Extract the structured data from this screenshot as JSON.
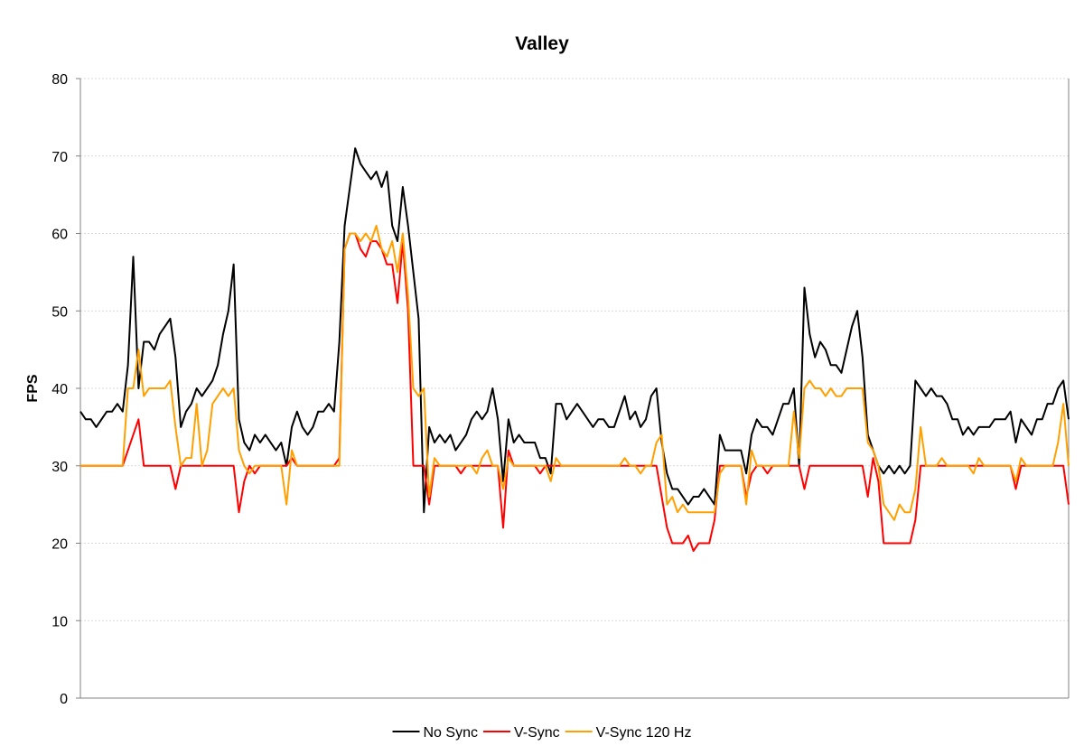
{
  "chart_data": {
    "type": "line",
    "title": "Valley",
    "xlabel": "",
    "ylabel": "FPS",
    "ylim": [
      0,
      80
    ],
    "yticks": [
      "0",
      "10",
      "20",
      "30",
      "40",
      "50",
      "60",
      "70",
      "80"
    ],
    "grid": true,
    "legend_position": "bottom",
    "series": [
      {
        "name": "No Sync",
        "color": "#000000",
        "values": [
          37,
          36,
          36,
          35,
          36,
          37,
          37,
          38,
          37,
          43,
          57,
          40,
          46,
          46,
          45,
          47,
          48,
          49,
          44,
          35,
          37,
          38,
          40,
          39,
          40,
          41,
          43,
          47,
          50,
          56,
          36,
          33,
          32,
          34,
          33,
          34,
          33,
          32,
          33,
          30,
          35,
          37,
          35,
          34,
          35,
          37,
          37,
          38,
          37,
          46,
          61,
          66,
          71,
          69,
          68,
          67,
          68,
          66,
          68,
          61,
          59,
          66,
          61,
          55,
          49,
          24,
          35,
          33,
          34,
          33,
          34,
          32,
          33,
          34,
          36,
          37,
          36,
          37,
          40,
          36,
          28,
          36,
          33,
          34,
          33,
          33,
          33,
          31,
          31,
          29,
          38,
          38,
          36,
          37,
          38,
          37,
          36,
          35,
          36,
          36,
          35,
          35,
          37,
          39,
          36,
          37,
          35,
          36,
          39,
          40,
          33,
          29,
          27,
          27,
          26,
          25,
          26,
          26,
          27,
          26,
          25,
          34,
          32,
          32,
          32,
          32,
          29,
          34,
          36,
          35,
          35,
          34,
          36,
          38,
          38,
          40,
          30,
          53,
          47,
          44,
          46,
          45,
          43,
          43,
          42,
          45,
          48,
          50,
          44,
          34,
          32,
          30,
          29,
          30,
          29,
          30,
          29,
          30,
          41,
          40,
          39,
          40,
          39,
          39,
          38,
          36,
          36,
          34,
          35,
          34,
          35,
          35,
          35,
          36,
          36,
          36,
          37,
          33,
          36,
          35,
          34,
          36,
          36,
          38,
          38,
          40,
          41,
          36
        ]
      },
      {
        "name": "V-Sync",
        "color": "#ff0000",
        "values": [
          30,
          30,
          30,
          30,
          30,
          30,
          30,
          30,
          30,
          32,
          34,
          36,
          30,
          30,
          30,
          30,
          30,
          30,
          27,
          30,
          30,
          30,
          30,
          30,
          30,
          30,
          30,
          30,
          30,
          30,
          24,
          28,
          30,
          29,
          30,
          30,
          30,
          30,
          30,
          30,
          31,
          30,
          30,
          30,
          30,
          30,
          30,
          30,
          30,
          31,
          58,
          60,
          60,
          58,
          57,
          59,
          59,
          58,
          56,
          56,
          51,
          59,
          50,
          30,
          30,
          30,
          25,
          30,
          30,
          30,
          30,
          30,
          29,
          30,
          30,
          30,
          30,
          30,
          30,
          30,
          22,
          32,
          30,
          30,
          30,
          30,
          30,
          29,
          30,
          30,
          30,
          30,
          30,
          30,
          30,
          30,
          30,
          30,
          30,
          30,
          30,
          30,
          30,
          30,
          30,
          30,
          30,
          30,
          30,
          30,
          26,
          22,
          20,
          20,
          20,
          21,
          19,
          20,
          20,
          20,
          23,
          30,
          30,
          30,
          30,
          30,
          26,
          29,
          30,
          30,
          29,
          30,
          30,
          30,
          30,
          30,
          30,
          27,
          30,
          30,
          30,
          30,
          30,
          30,
          30,
          30,
          30,
          30,
          30,
          26,
          31,
          28,
          20,
          20,
          20,
          20,
          20,
          20,
          23,
          30,
          30,
          30,
          30,
          30,
          30,
          30,
          30,
          30,
          30,
          30,
          30,
          30,
          30,
          30,
          30,
          30,
          30,
          27,
          30,
          30,
          30,
          30,
          30,
          30,
          30,
          30,
          30,
          25
        ]
      },
      {
        "name": "V-Sync 120 Hz",
        "color": "#ffa000",
        "values": [
          30,
          30,
          30,
          30,
          30,
          30,
          30,
          30,
          30,
          40,
          40,
          45,
          39,
          40,
          40,
          40,
          40,
          41,
          35,
          30,
          31,
          31,
          38,
          30,
          32,
          38,
          39,
          40,
          39,
          40,
          32,
          30,
          29,
          30,
          30,
          30,
          30,
          30,
          30,
          25,
          32,
          30,
          30,
          30,
          30,
          30,
          30,
          30,
          30,
          30,
          58,
          60,
          60,
          59,
          60,
          59,
          61,
          58,
          57,
          59,
          55,
          60,
          52,
          40,
          39,
          40,
          26,
          31,
          30,
          30,
          30,
          30,
          30,
          30,
          30,
          29,
          31,
          32,
          30,
          30,
          27,
          31,
          30,
          30,
          30,
          30,
          30,
          30,
          30,
          28,
          31,
          30,
          30,
          30,
          30,
          30,
          30,
          30,
          30,
          30,
          30,
          30,
          30,
          31,
          30,
          30,
          29,
          30,
          30,
          33,
          34,
          25,
          26,
          24,
          25,
          24,
          24,
          24,
          24,
          24,
          24,
          29,
          30,
          30,
          30,
          30,
          25,
          32,
          30,
          30,
          30,
          30,
          30,
          30,
          30,
          37,
          31,
          40,
          41,
          40,
          40,
          39,
          40,
          39,
          39,
          40,
          40,
          40,
          40,
          33,
          32,
          30,
          25,
          24,
          23,
          25,
          24,
          24,
          27,
          35,
          30,
          30,
          30,
          31,
          30,
          30,
          30,
          30,
          30,
          29,
          31,
          30,
          30,
          30,
          30,
          30,
          30,
          28,
          31,
          30,
          30,
          30,
          30,
          30,
          30,
          33,
          38,
          30
        ]
      }
    ]
  }
}
